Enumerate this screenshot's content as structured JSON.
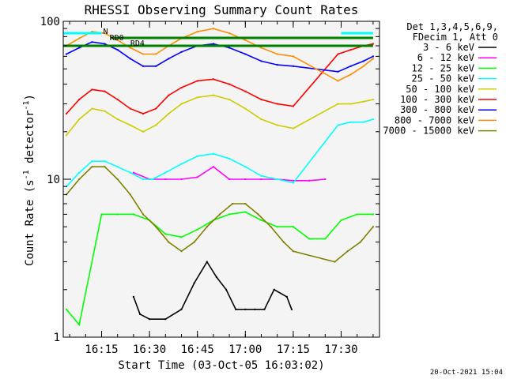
{
  "chart_data": {
    "type": "line",
    "title": "RHESSI Observing Summary Count Rates",
    "xlabel": "Start Time (03-Oct-05 16:03:02)",
    "ylabel_main": "Count Rate (s",
    "ylabel_sup": "-1",
    "ylabel_rest": " detector",
    "ylabel_sup2": "-1",
    "ylabel_end": ")",
    "yscale": "log",
    "ylim": [
      1,
      100
    ],
    "xlim_minutes": [
      963.0,
      1062.0
    ],
    "xticks": [
      {
        "label": "16:15",
        "minute": 975
      },
      {
        "label": "16:30",
        "minute": 990
      },
      {
        "label": "16:45",
        "minute": 1005
      },
      {
        "label": "17:00",
        "minute": 1020
      },
      {
        "label": "17:15",
        "minute": 1035
      },
      {
        "label": "17:30",
        "minute": 1050
      }
    ],
    "yticks": [
      {
        "label": "1",
        "value": 1
      },
      {
        "label": "10",
        "value": 10
      },
      {
        "label": "100",
        "value": 100
      }
    ],
    "legend": {
      "placement": "right",
      "header": [
        "Det 1,3,4,5,6,9,",
        "FDecim 1, Att 0"
      ],
      "entries": [
        {
          "label": "3 - 6 keV",
          "color": "#000000"
        },
        {
          "label": "6 - 12 keV",
          "color": "#ff00ff"
        },
        {
          "label": "12 - 25 keV",
          "color": "#00ff00"
        },
        {
          "label": "25 - 50 keV",
          "color": "#00ffff"
        },
        {
          "label": "50 - 100 keV",
          "color": "#cccc00"
        },
        {
          "label": "100 - 300 keV",
          "color": "#ff0000"
        },
        {
          "label": "300 - 800 keV",
          "color": "#0000ff"
        },
        {
          "label": "800 - 7000 keV",
          "color": "#ff8c00"
        },
        {
          "label": "7000 - 15000 keV",
          "color": "#808000"
        }
      ]
    },
    "annotations": {
      "flags": [
        {
          "label": "N",
          "color": "#00ffff"
        },
        {
          "label": "RD0",
          "color": "#008000"
        },
        {
          "label": "RD4",
          "color": "#008000"
        }
      ],
      "timestamp": "20-Oct-2021 15:04"
    },
    "series": [
      {
        "name": "3 - 6 keV",
        "color": "#000000",
        "points": [
          [
            985,
            1.8
          ],
          [
            987,
            1.4
          ],
          [
            990,
            1.3
          ],
          [
            995,
            1.3
          ],
          [
            1000,
            1.5
          ],
          [
            1004,
            2.2
          ],
          [
            1008,
            3
          ],
          [
            1011,
            2.4
          ],
          [
            1014,
            2
          ],
          [
            1017,
            1.5
          ],
          [
            1020,
            1.5
          ],
          [
            1023,
            1.5
          ],
          [
            1026,
            1.5
          ],
          [
            1029,
            2
          ],
          [
            1033,
            1.8
          ],
          [
            1034.5,
            1.5
          ]
        ]
      },
      {
        "name": "6 - 12 keV",
        "color": "#ff00ff",
        "points": [
          [
            985,
            11
          ],
          [
            990,
            10
          ],
          [
            995,
            10
          ],
          [
            1000,
            10
          ],
          [
            1005,
            10.3
          ],
          [
            1010,
            12
          ],
          [
            1015,
            10
          ],
          [
            1020,
            10
          ],
          [
            1025,
            10
          ],
          [
            1030,
            10
          ],
          [
            1035,
            9.8
          ],
          [
            1040,
            9.8
          ],
          [
            1045,
            10
          ]
        ]
      },
      {
        "name": "12 - 25 keV",
        "color": "#00ff00",
        "points": [
          [
            964,
            1.5
          ],
          [
            968,
            1.2
          ],
          [
            975,
            6
          ],
          [
            980,
            6
          ],
          [
            985,
            6
          ],
          [
            990,
            5.5
          ],
          [
            995,
            4.5
          ],
          [
            1000,
            4.3
          ],
          [
            1005,
            4.8
          ],
          [
            1010,
            5.5
          ],
          [
            1015,
            6
          ],
          [
            1020,
            6.2
          ],
          [
            1025,
            5.5
          ],
          [
            1030,
            5
          ],
          [
            1035,
            5
          ],
          [
            1040,
            4.2
          ],
          [
            1045,
            4.2
          ],
          [
            1050,
            5.5
          ],
          [
            1055,
            6
          ],
          [
            1060,
            6
          ]
        ]
      },
      {
        "name": "25 - 50 keV",
        "color": "#00ffff",
        "points": [
          [
            964,
            9
          ],
          [
            968,
            11
          ],
          [
            972,
            13
          ],
          [
            976,
            13
          ],
          [
            980,
            12
          ],
          [
            984,
            11
          ],
          [
            988,
            10
          ],
          [
            991,
            10
          ],
          [
            995,
            11
          ],
          [
            1000,
            12.5
          ],
          [
            1005,
            14
          ],
          [
            1010,
            14.5
          ],
          [
            1015,
            13.5
          ],
          [
            1020,
            12
          ],
          [
            1025,
            10.5
          ],
          [
            1030,
            10
          ],
          [
            1035,
            9.5
          ],
          [
            1049,
            22
          ],
          [
            1053,
            23
          ],
          [
            1057,
            23
          ],
          [
            1060,
            24
          ]
        ]
      },
      {
        "name": "50 - 100 keV",
        "color": "#cccc00",
        "points": [
          [
            964,
            19
          ],
          [
            968,
            24
          ],
          [
            972,
            28
          ],
          [
            976,
            27
          ],
          [
            980,
            24
          ],
          [
            984,
            22
          ],
          [
            988,
            20
          ],
          [
            992,
            22
          ],
          [
            996,
            26
          ],
          [
            1000,
            30
          ],
          [
            1005,
            33
          ],
          [
            1010,
            34
          ],
          [
            1015,
            32
          ],
          [
            1020,
            28
          ],
          [
            1025,
            24
          ],
          [
            1030,
            22
          ],
          [
            1035,
            21
          ],
          [
            1049,
            30
          ],
          [
            1053,
            30
          ],
          [
            1057,
            31
          ],
          [
            1060,
            32
          ]
        ]
      },
      {
        "name": "100 - 300 keV",
        "color": "#ff0000",
        "points": [
          [
            964,
            26
          ],
          [
            968,
            32
          ],
          [
            972,
            37
          ],
          [
            976,
            36
          ],
          [
            980,
            32
          ],
          [
            984,
            28
          ],
          [
            988,
            26
          ],
          [
            992,
            28
          ],
          [
            996,
            34
          ],
          [
            1000,
            38
          ],
          [
            1005,
            42
          ],
          [
            1010,
            43
          ],
          [
            1015,
            40
          ],
          [
            1020,
            36
          ],
          [
            1025,
            32
          ],
          [
            1030,
            30
          ],
          [
            1035,
            29
          ],
          [
            1049,
            62
          ],
          [
            1053,
            66
          ],
          [
            1057,
            70
          ],
          [
            1060,
            72
          ]
        ]
      },
      {
        "name": "300 - 800 keV",
        "color": "#0000ff",
        "points": [
          [
            964,
            62
          ],
          [
            968,
            68
          ],
          [
            972,
            74
          ],
          [
            976,
            72
          ],
          [
            980,
            66
          ],
          [
            984,
            58
          ],
          [
            988,
            52
          ],
          [
            992,
            52
          ],
          [
            996,
            58
          ],
          [
            1000,
            64
          ],
          [
            1005,
            70
          ],
          [
            1010,
            72
          ],
          [
            1015,
            68
          ],
          [
            1020,
            62
          ],
          [
            1025,
            56
          ],
          [
            1030,
            53
          ],
          [
            1035,
            52
          ],
          [
            1049,
            48
          ],
          [
            1053,
            52
          ],
          [
            1057,
            56
          ],
          [
            1060,
            60
          ]
        ]
      },
      {
        "name": "800 - 7000 keV",
        "color": "#ff8c00",
        "points": [
          [
            964,
            70
          ],
          [
            968,
            78
          ],
          [
            972,
            86
          ],
          [
            976,
            84
          ],
          [
            980,
            76
          ],
          [
            984,
            68
          ],
          [
            988,
            62
          ],
          [
            992,
            62
          ],
          [
            996,
            70
          ],
          [
            1000,
            78
          ],
          [
            1005,
            86
          ],
          [
            1010,
            90
          ],
          [
            1015,
            84
          ],
          [
            1020,
            76
          ],
          [
            1025,
            68
          ],
          [
            1030,
            62
          ],
          [
            1035,
            60
          ],
          [
            1049,
            42
          ],
          [
            1053,
            46
          ],
          [
            1057,
            52
          ],
          [
            1060,
            58
          ]
        ]
      },
      {
        "name": "7000 - 15000 keV",
        "color": "#808000",
        "points": [
          [
            964,
            8
          ],
          [
            968,
            10
          ],
          [
            972,
            12
          ],
          [
            976,
            12
          ],
          [
            980,
            10
          ],
          [
            984,
            8
          ],
          [
            988,
            6
          ],
          [
            992,
            5
          ],
          [
            996,
            4
          ],
          [
            1000,
            3.5
          ],
          [
            1004,
            4
          ],
          [
            1008,
            5
          ],
          [
            1012,
            6
          ],
          [
            1016,
            7
          ],
          [
            1020,
            7
          ],
          [
            1024,
            6
          ],
          [
            1028,
            5
          ],
          [
            1032,
            4
          ],
          [
            1035,
            3.5
          ],
          [
            1048,
            3
          ],
          [
            1052,
            3.5
          ],
          [
            1056,
            4
          ],
          [
            1060,
            5
          ]
        ]
      }
    ]
  }
}
